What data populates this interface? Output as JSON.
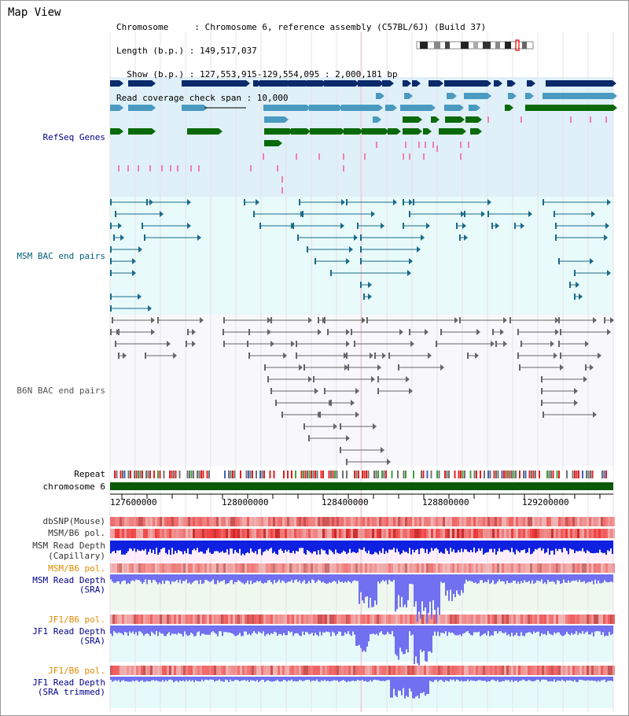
{
  "app": {
    "title": "Map View"
  },
  "header": {
    "line1": "Chromosome     : Chromosome 6, reference assembly (C57BL/6J) (Build 37)",
    "line2": "Length (b.p.) : 149,517,037",
    "line3": "  Show (b.p.) : 127,553,915-129,554,095 : 2,000,181 bp",
    "line4": "Read coverage check span : 10,000"
  },
  "tracks": {
    "refseq_label": "RefSeq Genes",
    "msm_bac_label": "MSM BAC end pairs",
    "b6n_bac_label": "B6N BAC end pairs",
    "repeat_label": "Repeat",
    "chromosome_label": "chromosome 6",
    "dbsnp_label": "dbSNP(Mouse)",
    "msm_pol_label": "MSM/B6 pol.",
    "msm_depth_cap_1": "MSM Read Depth",
    "msm_depth_cap_2": "(Capillary)",
    "msm_pol2_label": "MSM/B6 pol.",
    "msm_depth_sra_1": "MSM Read Depth",
    "msm_depth_sra_2": "(SRA)",
    "jf1_pol_label": "JF1/B6 pol.",
    "jf1_depth_1": "JF1 Read Depth",
    "jf1_depth_2": "(SRA)",
    "jf1_pol2_label": "JF1/B6 pol.",
    "jf1_trim_1": "JF1 Read Depth",
    "jf1_trim_2": "(SRA trimmed)"
  },
  "ruler": {
    "ticks": [
      "127600000",
      "128000000",
      "128400000",
      "128800000",
      "129200000"
    ]
  },
  "colors": {
    "refseq_bg": "#dff0f8",
    "msm_bg": "#e8fafa",
    "b6n_bg": "#f8f8fc",
    "gene_dark": "#0a2a6a",
    "gene_mid": "#4a9ac0",
    "gene_green": "#0a6a0a",
    "gene_pink": "#f080b0",
    "msm_line": "#1a6a8a",
    "b6n_line": "#666666",
    "chrom_bar": "#0a5a0a",
    "depth_capillary": "#1020e0",
    "depth_sra": "#7070f0",
    "pol_red": "#e03030",
    "label_blue": "#00008b",
    "label_orange": "#e08a00",
    "label_teal": "#00607a"
  }
}
